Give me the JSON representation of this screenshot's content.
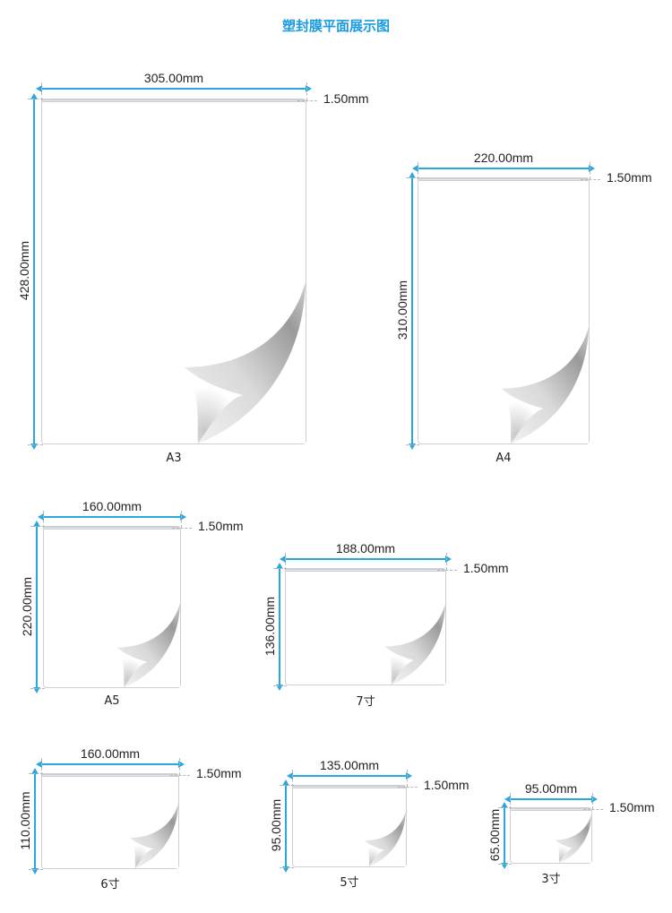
{
  "title": "塑封膜平面展示图",
  "colors": {
    "accent": "#1a9be0",
    "dimension_line": "#29a7e1"
  },
  "sheets": [
    {
      "name": "A3",
      "width_label": "305.00mm",
      "height_label": "428.00mm",
      "seal_label": "1.50mm"
    },
    {
      "name": "A4",
      "width_label": "220.00mm",
      "height_label": "310.00mm",
      "seal_label": "1.50mm"
    },
    {
      "name": "A5",
      "width_label": "160.00mm",
      "height_label": "220.00mm",
      "seal_label": "1.50mm"
    },
    {
      "name": "7寸",
      "width_label": "188.00mm",
      "height_label": "136.00mm",
      "seal_label": "1.50mm"
    },
    {
      "name": "6寸",
      "width_label": "160.00mm",
      "height_label": "110.00mm",
      "seal_label": "1.50mm"
    },
    {
      "name": "5寸",
      "width_label": "135.00mm",
      "height_label": "95.00mm",
      "seal_label": "1.50mm"
    },
    {
      "name": "3寸",
      "width_label": "95.00mm",
      "height_label": "65.00mm",
      "seal_label": "1.50mm"
    }
  ]
}
